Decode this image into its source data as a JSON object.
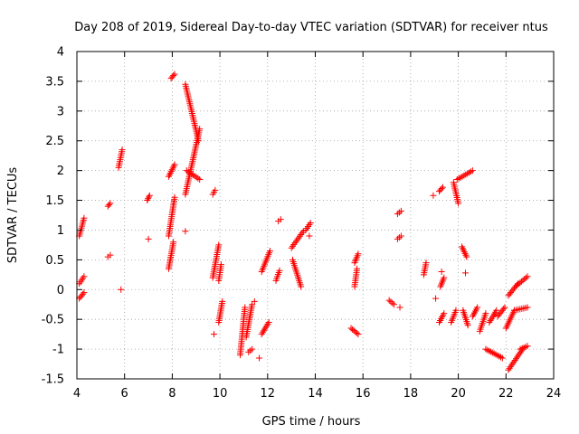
{
  "chart_data": {
    "type": "scatter",
    "title": "Day 208 of 2019, Sidereal Day-to-day VTEC variation (SDTVAR) for receiver ntus",
    "xlabel": "GPS time / hours",
    "ylabel": "SDTVAR / TECUs",
    "xlim": [
      4,
      24
    ],
    "ylim": [
      -1.5,
      4
    ],
    "x_ticks": [
      "4",
      "6",
      "8",
      "10",
      "12",
      "14",
      "16",
      "18",
      "20",
      "22",
      "24"
    ],
    "y_ticks": [
      "-1.5",
      "-1",
      "-0.5",
      "0",
      "0.5",
      "1",
      "1.5",
      "2",
      "2.5",
      "3",
      "3.5",
      "4"
    ],
    "grid": true,
    "marker": "+",
    "marker_color": "#ff0000",
    "segments": [
      {
        "x": [
          4.1,
          4.3
        ],
        "y": [
          0.9,
          1.2
        ]
      },
      {
        "x": [
          4.1,
          4.3
        ],
        "y": [
          0.1,
          0.22
        ]
      },
      {
        "x": [
          4.1,
          4.3
        ],
        "y": [
          -0.15,
          -0.05
        ]
      },
      {
        "x": [
          5.3,
          5.4
        ],
        "y": [
          1.4,
          1.45
        ]
      },
      {
        "x": [
          5.3,
          5.4
        ],
        "y": [
          0.55,
          0.58
        ]
      },
      {
        "x": [
          5.75,
          5.9
        ],
        "y": [
          2.05,
          2.35
        ]
      },
      {
        "x": [
          6.95,
          7.05
        ],
        "y": [
          1.5,
          1.58
        ]
      },
      {
        "x": [
          7.85,
          8.05
        ],
        "y": [
          0.35,
          0.8
        ]
      },
      {
        "x": [
          7.85,
          8.1
        ],
        "y": [
          0.9,
          1.55
        ]
      },
      {
        "x": [
          7.85,
          8.1
        ],
        "y": [
          1.9,
          2.1
        ]
      },
      {
        "x": [
          7.95,
          8.1
        ],
        "y": [
          3.55,
          3.62
        ]
      },
      {
        "x": [
          8.55,
          9.1
        ],
        "y": [
          3.45,
          2.5
        ]
      },
      {
        "x": [
          8.55,
          9.15
        ],
        "y": [
          1.6,
          2.7
        ]
      },
      {
        "x": [
          8.6,
          9.15
        ],
        "y": [
          2.0,
          1.85
        ]
      },
      {
        "x": [
          9.7,
          9.8
        ],
        "y": [
          1.6,
          1.67
        ]
      },
      {
        "x": [
          9.7,
          9.95
        ],
        "y": [
          0.2,
          0.75
        ]
      },
      {
        "x": [
          9.95,
          10.1
        ],
        "y": [
          -0.55,
          -0.2
        ]
      },
      {
        "x": [
          9.95,
          10.05
        ],
        "y": [
          0.15,
          0.42
        ]
      },
      {
        "x": [
          10.85,
          11.05
        ],
        "y": [
          -1.1,
          -0.3
        ]
      },
      {
        "x": [
          11.1,
          11.35
        ],
        "y": [
          -0.8,
          -0.25
        ]
      },
      {
        "x": [
          11.2,
          11.35
        ],
        "y": [
          -1.05,
          -1.0
        ]
      },
      {
        "x": [
          11.75,
          12.05
        ],
        "y": [
          -0.75,
          -0.55
        ]
      },
      {
        "x": [
          11.75,
          12.1
        ],
        "y": [
          0.3,
          0.65
        ]
      },
      {
        "x": [
          12.35,
          12.5
        ],
        "y": [
          0.15,
          0.32
        ]
      },
      {
        "x": [
          12.45,
          12.55
        ],
        "y": [
          1.15,
          1.18
        ]
      },
      {
        "x": [
          13.0,
          13.5
        ],
        "y": [
          0.7,
          0.98
        ]
      },
      {
        "x": [
          13.05,
          13.4
        ],
        "y": [
          0.5,
          0.05
        ]
      },
      {
        "x": [
          13.6,
          13.8
        ],
        "y": [
          1.0,
          1.12
        ]
      },
      {
        "x": [
          15.5,
          15.8
        ],
        "y": [
          -0.65,
          -0.75
        ]
      },
      {
        "x": [
          15.65,
          15.75
        ],
        "y": [
          0.05,
          0.35
        ]
      },
      {
        "x": [
          15.65,
          15.8
        ],
        "y": [
          0.45,
          0.6
        ]
      },
      {
        "x": [
          17.1,
          17.3
        ],
        "y": [
          -0.18,
          -0.25
        ]
      },
      {
        "x": [
          17.45,
          17.6
        ],
        "y": [
          0.85,
          0.9
        ]
      },
      {
        "x": [
          17.45,
          17.6
        ],
        "y": [
          1.27,
          1.32
        ]
      },
      {
        "x": [
          18.55,
          18.65
        ],
        "y": [
          0.25,
          0.45
        ]
      },
      {
        "x": [
          19.2,
          19.35
        ],
        "y": [
          1.65,
          1.72
        ]
      },
      {
        "x": [
          19.2,
          19.4
        ],
        "y": [
          -0.55,
          -0.4
        ]
      },
      {
        "x": [
          19.25,
          19.4
        ],
        "y": [
          0.05,
          0.2
        ]
      },
      {
        "x": [
          19.7,
          19.9
        ],
        "y": [
          -0.55,
          -0.35
        ]
      },
      {
        "x": [
          19.8,
          20.0
        ],
        "y": [
          1.8,
          1.45
        ]
      },
      {
        "x": [
          19.95,
          20.6
        ],
        "y": [
          1.85,
          2.0
        ]
      },
      {
        "x": [
          20.15,
          20.35
        ],
        "y": [
          0.72,
          0.55
        ]
      },
      {
        "x": [
          20.2,
          20.4
        ],
        "y": [
          -0.35,
          -0.6
        ]
      },
      {
        "x": [
          20.6,
          20.8
        ],
        "y": [
          -0.45,
          -0.3
        ]
      },
      {
        "x": [
          20.9,
          21.15
        ],
        "y": [
          -0.7,
          -0.4
        ]
      },
      {
        "x": [
          21.15,
          21.85
        ],
        "y": [
          -1.0,
          -1.15
        ]
      },
      {
        "x": [
          21.3,
          21.6
        ],
        "y": [
          -0.55,
          -0.35
        ]
      },
      {
        "x": [
          21.65,
          21.95
        ],
        "y": [
          -0.45,
          -0.3
        ]
      },
      {
        "x": [
          22.0,
          22.35
        ],
        "y": [
          -0.65,
          -0.35
        ]
      },
      {
        "x": [
          22.1,
          22.5
        ],
        "y": [
          -0.1,
          0.1
        ]
      },
      {
        "x": [
          22.1,
          22.7
        ],
        "y": [
          -1.35,
          -1.0
        ]
      },
      {
        "x": [
          22.35,
          22.9
        ],
        "y": [
          -0.35,
          -0.3
        ]
      },
      {
        "x": [
          22.4,
          22.9
        ],
        "y": [
          0.05,
          0.22
        ]
      },
      {
        "x": [
          22.6,
          22.9
        ],
        "y": [
          -1.0,
          -0.95
        ]
      }
    ],
    "singles": [
      {
        "x": 5.85,
        "y": 0.0
      },
      {
        "x": 7.0,
        "y": 0.85
      },
      {
        "x": 8.55,
        "y": 0.98
      },
      {
        "x": 9.75,
        "y": -0.75
      },
      {
        "x": 11.65,
        "y": -1.15
      },
      {
        "x": 11.45,
        "y": -0.2
      },
      {
        "x": 13.75,
        "y": 0.9
      },
      {
        "x": 17.55,
        "y": -0.3
      },
      {
        "x": 18.95,
        "y": 1.58
      },
      {
        "x": 19.05,
        "y": -0.15
      },
      {
        "x": 19.3,
        "y": 0.3
      },
      {
        "x": 20.3,
        "y": 0.28
      }
    ]
  }
}
